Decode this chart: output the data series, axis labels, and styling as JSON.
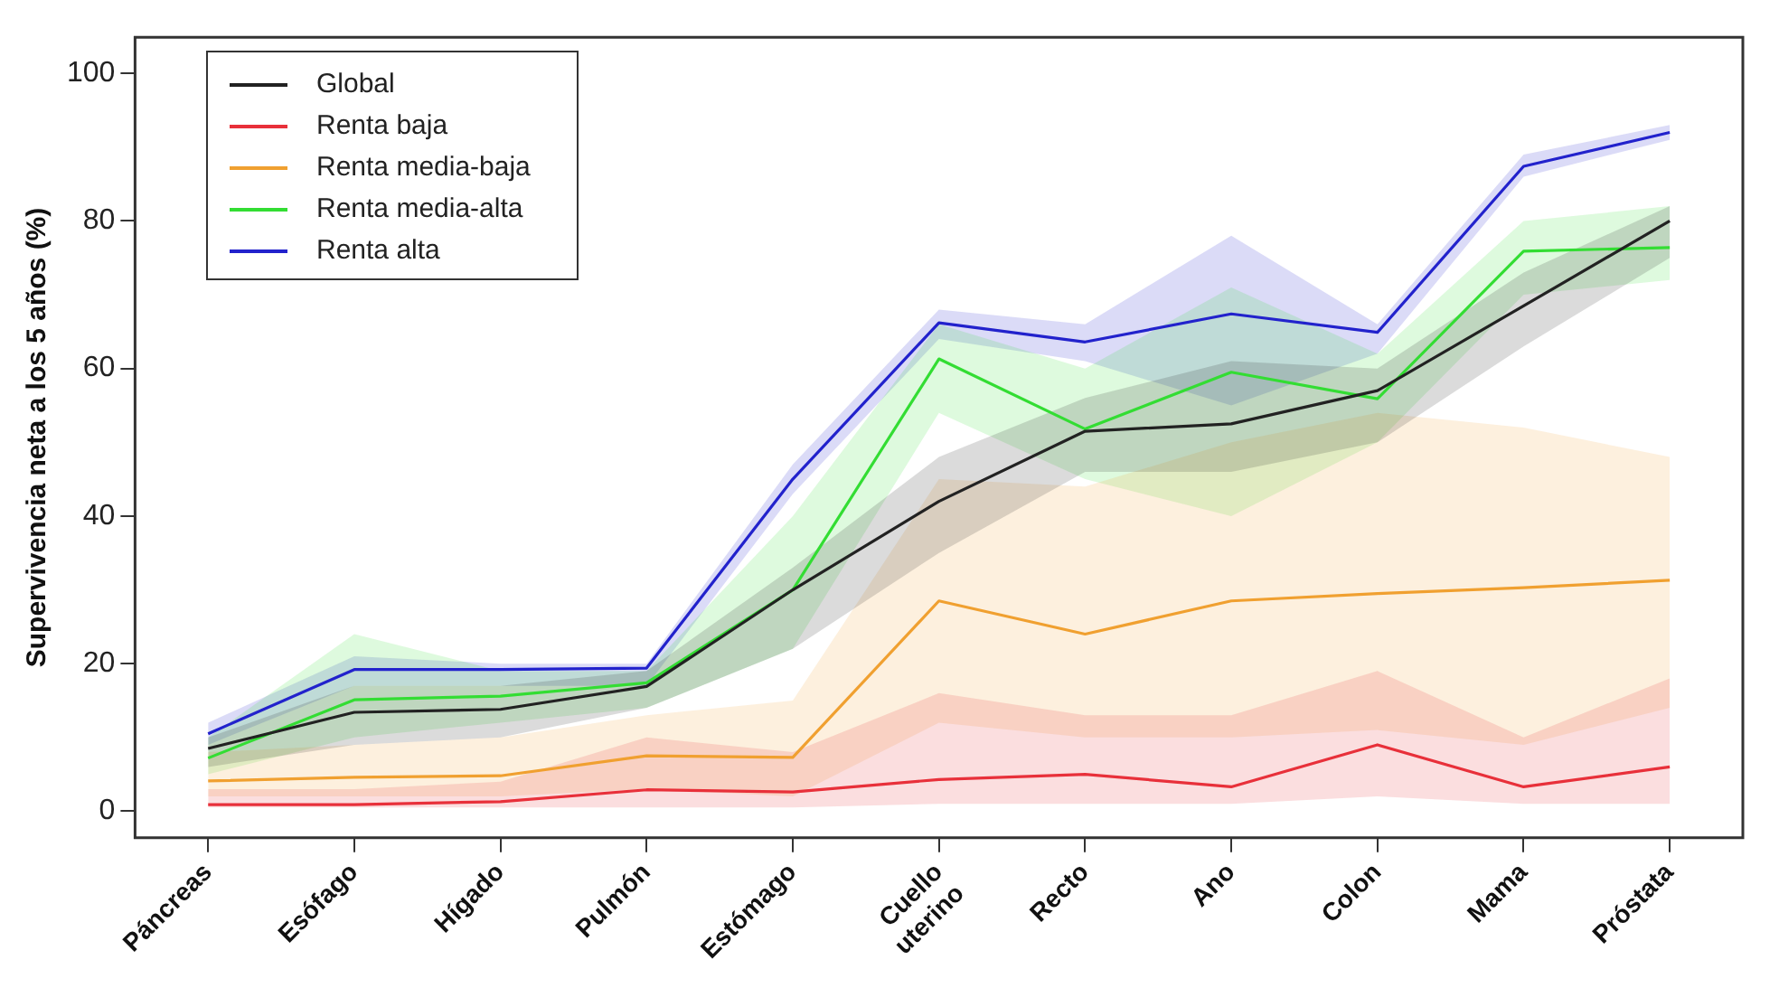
{
  "chart_data": {
    "type": "line",
    "ylabel": "Supervivencia neta a los 5 años (%)",
    "categories": [
      "Páncreas",
      "Esófago",
      "Hígado",
      "Pulmón",
      "Estómago",
      "Cuello uterino",
      "Recto",
      "Ano",
      "Colon",
      "Mama",
      "Próstata"
    ],
    "series": [
      {
        "name": "Global",
        "color": "#222222",
        "values": [
          8.5,
          13.4,
          13.8,
          16.9,
          30,
          42,
          51.5,
          52.5,
          57,
          68.5,
          80
        ],
        "lower": [
          6,
          9,
          10,
          14,
          22,
          35,
          46,
          46,
          50,
          63,
          75
        ],
        "upper": [
          10,
          17,
          17,
          19,
          33,
          48,
          56,
          61,
          60,
          73,
          82
        ]
      },
      {
        "name": "Renta baja",
        "color": "#e8303a",
        "values": [
          0.9,
          0.9,
          1.3,
          2.9,
          2.6,
          4.3,
          5.0,
          3.3,
          9.0,
          3.3,
          6.0
        ],
        "lower": [
          0.5,
          0.5,
          0.5,
          0.5,
          0.5,
          1,
          1,
          1,
          2,
          1,
          1
        ],
        "upper": [
          3,
          3,
          4,
          10,
          8,
          16,
          13,
          13,
          19,
          10,
          18
        ]
      },
      {
        "name": "Renta media-baja",
        "color": "#f0a030",
        "values": [
          4.1,
          4.6,
          4.8,
          7.5,
          7.3,
          28.5,
          24,
          28.5,
          29.5,
          30.3,
          31.3
        ],
        "lower": [
          2,
          2,
          2,
          3,
          2,
          12,
          10,
          10,
          11,
          9,
          14
        ],
        "upper": [
          8,
          9,
          10,
          13,
          15,
          45,
          44,
          50,
          54,
          52,
          48
        ]
      },
      {
        "name": "Renta media-alta",
        "color": "#33dd33",
        "values": [
          7.2,
          15.1,
          15.6,
          17.4,
          30,
          61.3,
          51.8,
          59.5,
          55.9,
          75.9,
          76.4
        ],
        "lower": [
          5,
          10,
          12,
          14,
          22,
          54,
          45,
          40,
          50,
          70,
          72
        ],
        "upper": [
          10,
          24,
          19,
          19,
          40,
          66,
          60,
          71,
          62,
          80,
          82
        ]
      },
      {
        "name": "Renta alta",
        "color": "#2222cc",
        "values": [
          10.5,
          19.2,
          19.2,
          19.4,
          45,
          66.2,
          63.6,
          67.4,
          64.9,
          87.4,
          92
        ],
        "lower": [
          9,
          17,
          17,
          17,
          43,
          64,
          61,
          55,
          62,
          86,
          91
        ],
        "upper": [
          12,
          21,
          20,
          20,
          47,
          68,
          66,
          78,
          66,
          89,
          93
        ]
      }
    ],
    "ylim": [
      -3.6,
      104.9
    ],
    "yticks": [
      0,
      20,
      40,
      60,
      80,
      100
    ],
    "grid": false,
    "legend": "top left",
    "marker": "none",
    "line_style": "solid"
  }
}
